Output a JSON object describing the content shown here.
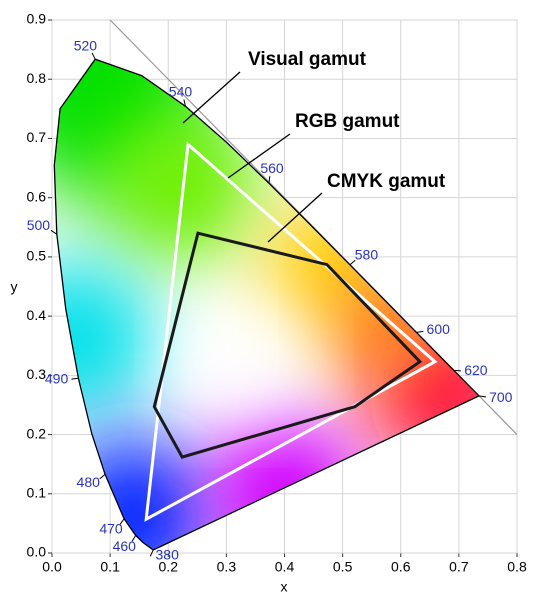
{
  "chart_data": {
    "type": "chromaticity",
    "xlabel": "x",
    "ylabel": "y",
    "xlim": [
      0,
      0.8
    ],
    "ylim": [
      0,
      0.9
    ],
    "xticks": [
      {
        "value": 0,
        "label": "0.0"
      },
      {
        "value": 0.1,
        "label": "0.1"
      },
      {
        "value": 0.2,
        "label": "0.2"
      },
      {
        "value": 0.3,
        "label": "0.3"
      },
      {
        "value": 0.4,
        "label": "0.4"
      },
      {
        "value": 0.5,
        "label": "0.5"
      },
      {
        "value": 0.6,
        "label": "0.6"
      },
      {
        "value": 0.7,
        "label": "0.7"
      },
      {
        "value": 0.8,
        "label": "0.8"
      }
    ],
    "yticks": [
      {
        "value": 0,
        "label": "0.0"
      },
      {
        "value": 0.1,
        "label": "0.1"
      },
      {
        "value": 0.2,
        "label": "0.2"
      },
      {
        "value": 0.3,
        "label": "0.3"
      },
      {
        "value": 0.4,
        "label": "0.4"
      },
      {
        "value": 0.5,
        "label": "0.5"
      },
      {
        "value": 0.6,
        "label": "0.6"
      },
      {
        "value": 0.7,
        "label": "0.7"
      },
      {
        "value": 0.8,
        "label": "0.8"
      },
      {
        "value": 0.9,
        "label": "0.9"
      }
    ],
    "grid": true,
    "locus": {
      "x": [
        0.1741,
        0.1566,
        0.144,
        0.1241,
        0.0913,
        0.0687,
        0.0454,
        0.0235,
        0.0082,
        0.0039,
        0.0139,
        0.0743,
        0.1547,
        0.2296,
        0.3016,
        0.3731,
        0.4441,
        0.5125,
        0.5752,
        0.627,
        0.6915,
        0.7347
      ],
      "y": [
        0.005,
        0.0177,
        0.0297,
        0.0578,
        0.1327,
        0.2007,
        0.295,
        0.4127,
        0.5384,
        0.6548,
        0.7502,
        0.8338,
        0.8059,
        0.7543,
        0.6923,
        0.6245,
        0.5547,
        0.4866,
        0.4242,
        0.3725,
        0.3083,
        0.2653
      ],
      "labels": [
        "380",
        null,
        "460",
        "470",
        "480",
        null,
        "490",
        null,
        "500",
        null,
        null,
        "520",
        null,
        "540",
        null,
        "560",
        null,
        "580",
        null,
        "600",
        "620",
        "700"
      ],
      "color": "#000000"
    },
    "gamuts": [
      {
        "x": [
          0.234,
          0.659,
          0.162
        ],
        "y": [
          0.69,
          0.323,
          0.057
        ],
        "color": "#ffffff"
      },
      {
        "x": [
          0.251,
          0.473,
          0.633,
          0.521,
          0.224,
          0.176
        ],
        "y": [
          0.54,
          0.487,
          0.323,
          0.247,
          0.162,
          0.247
        ],
        "color": "#1a1a1a"
      }
    ],
    "annotations": [
      "Visual gamut",
      "RGB gamut",
      "CMYK gamut"
    ],
    "label_color": "#2a35b8"
  }
}
